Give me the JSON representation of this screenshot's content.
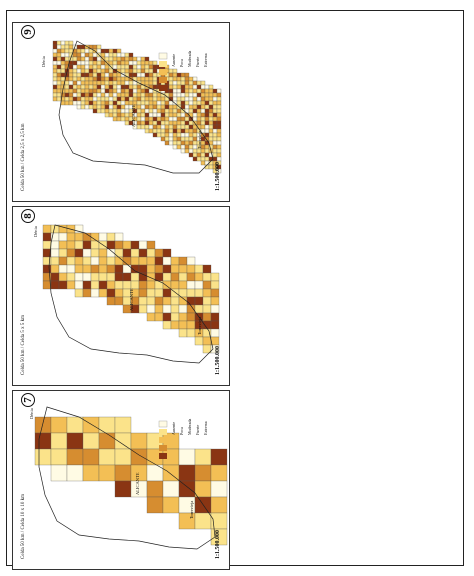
{
  "panels": [
    {
      "number": "9",
      "cell_label": "Celda 50 km / Celda 2,5 x 2,5 km",
      "scale": "1:1.500.000",
      "places": {
        "north": "Dénia",
        "capital": "ALICANTE",
        "south": "Torrevieja"
      },
      "legend": [
        "Ausente",
        "Poca",
        "Moderada",
        "Fuerte",
        "Extrema"
      ]
    },
    {
      "number": "8",
      "cell_label": "Celda 50 km / Celda 5 x 5 km",
      "scale": "1:1.500.000",
      "places": {
        "north": "Dénia",
        "capital": "ALICANTE",
        "south": "Torrevieja"
      },
      "legend": []
    },
    {
      "number": "7",
      "cell_label": "Celda 50 km / Celda 10 x 10 km",
      "scale": "1:1.500.000",
      "places": {
        "north": "Dénia",
        "capital": "ALICANTE",
        "south": "Torrevieja"
      },
      "legend": [
        "Ausente",
        "Poca",
        "Moderada",
        "Fuerte",
        "Extrema"
      ]
    }
  ],
  "palette": {
    "ausente": "#fffbe4",
    "poca": "#fbe38a",
    "moderada": "#f3bf55",
    "fuerte": "#d68d30",
    "extrema": "#8a3513"
  }
}
